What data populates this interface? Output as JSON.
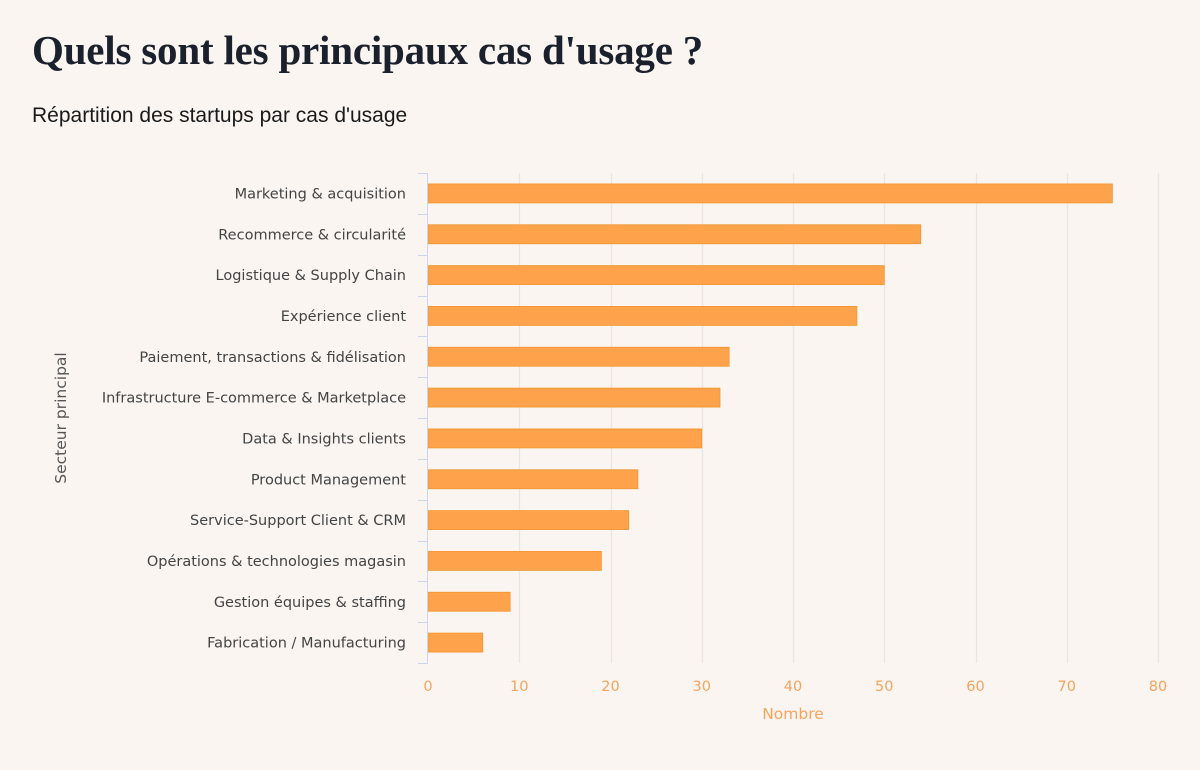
{
  "header": {
    "title": "Quels sont les principaux cas d'usage ?",
    "subtitle": "Répartition des startups par cas d'usage"
  },
  "colors": {
    "background": "#faf5f1",
    "bar_fill": "#ffa24c",
    "bar_stroke": "#f2962f",
    "axis_text_accent": "#f7a35c",
    "category_text": "#444444",
    "gridline": "#e6e6e6",
    "axis_line": "#ccd6eb"
  },
  "chart_data": {
    "type": "bar",
    "orientation": "horizontal",
    "title": "",
    "xlabel": "Nombre",
    "ylabel": "Secteur principal",
    "categories": [
      "Marketing & acquisition",
      "Recommerce & circularité",
      "Logistique & Supply Chain",
      "Expérience client",
      "Paiement, transactions & fidélisation",
      "Infrastructure E-commerce & Marketplace",
      "Data & Insights clients",
      "Product Management",
      "Service-Support Client & CRM",
      "Opérations & technologies magasin",
      "Gestion équipes & staffing",
      "Fabrication / Manufacturing"
    ],
    "values": [
      75,
      54,
      50,
      47,
      33,
      32,
      30,
      23,
      22,
      19,
      9,
      6
    ],
    "xlim": [
      0,
      80
    ],
    "xticks": [
      0,
      10,
      20,
      30,
      40,
      50,
      60,
      70,
      80
    ],
    "xtick_labels": [
      "0",
      "10",
      "20",
      "30",
      "40",
      "50",
      "60",
      "70",
      "80"
    ],
    "grid": true,
    "legend": "none"
  }
}
